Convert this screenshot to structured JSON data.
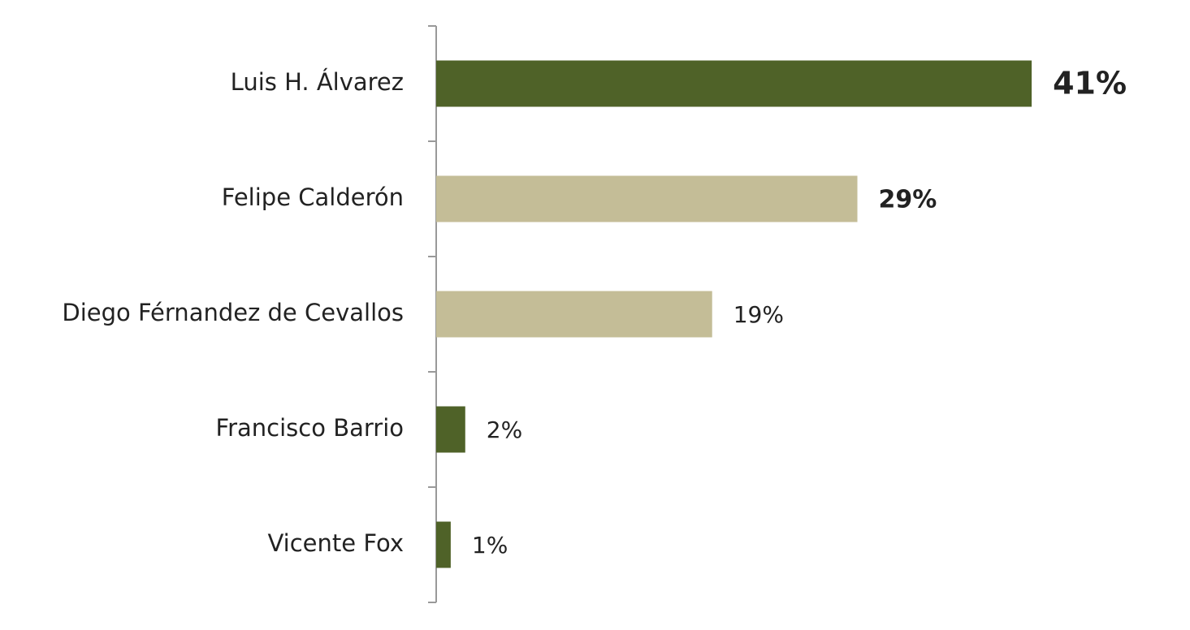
{
  "chart_data": {
    "type": "bar",
    "orientation": "horizontal",
    "categories": [
      "Luis H. Álvarez",
      "Felipe Calderón",
      "Diego Férnandez de Cevallos",
      "Francisco Barrio",
      "Vicente Fox"
    ],
    "values": [
      41,
      29,
      19,
      2,
      1
    ],
    "value_labels": [
      "41%",
      "29%",
      "19%",
      "2%",
      "1%"
    ],
    "colors": [
      "#4f6228",
      "#c4bd97",
      "#c4bd97",
      "#4f6228",
      "#4f6228"
    ]
  }
}
